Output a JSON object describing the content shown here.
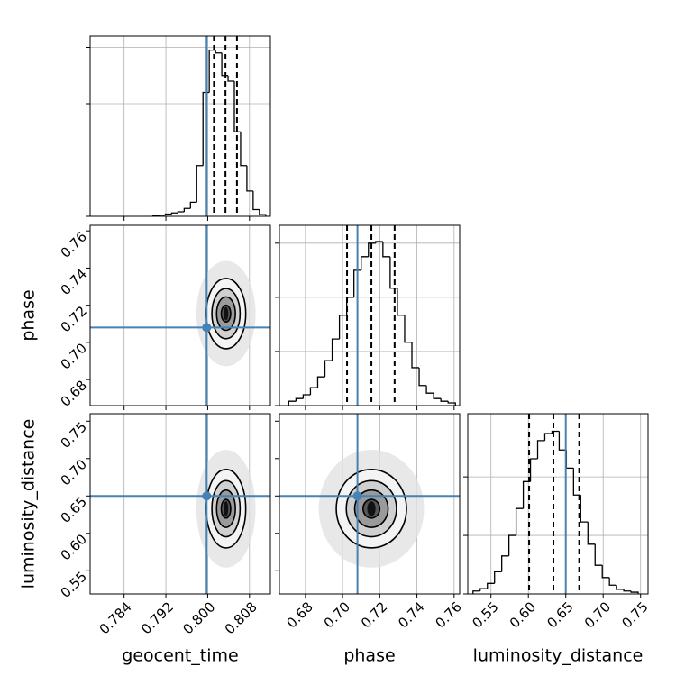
{
  "chart_data": {
    "type": "corner",
    "truth_color": "#4682b4",
    "grid": true,
    "contour_levels": [
      0.5,
      1,
      1.5,
      2.1
    ],
    "parameters": [
      {
        "name": "geocent_time",
        "lim": [
          0.7775,
          0.812
        ],
        "ticks": [
          0.784,
          0.792,
          {
            "value": 0.8,
            "label": "0.800"
          },
          0.808
        ],
        "truth": 0.7998,
        "mean": 0.8035,
        "std": 0.0018,
        "quantiles": [
          0.8012,
          0.8034,
          0.8056
        ],
        "hist": {
          "bins": [
            0.7895,
            0.7907,
            0.7919,
            0.7931,
            0.7943,
            0.7955,
            0.7967,
            0.7979,
            0.7991,
            0.8003,
            0.8015,
            0.8027,
            0.8039,
            0.8051,
            0.8063,
            0.8075,
            0.8087,
            0.8099,
            0.8111
          ],
          "counts": [
            0.01,
            0.02,
            0.04,
            0.06,
            0.08,
            0.14,
            0.25,
            0.9,
            2.2,
            2.95,
            2.9,
            2.5,
            2.4,
            1.5,
            0.9,
            0.45,
            0.12,
            0.03
          ],
          "ylim": [
            0,
            3.2
          ],
          "yticks": [
            0,
            1,
            2,
            3
          ]
        }
      },
      {
        "name": "phase",
        "lim": [
          0.666,
          0.763
        ],
        "ticks": [
          0.68,
          {
            "value": 0.7,
            "label": "0.70"
          },
          0.72,
          0.74,
          0.76
        ],
        "truth": 0.708,
        "mean": 0.7155,
        "std": 0.009,
        "quantiles": [
          0.7024,
          0.7155,
          0.728
        ],
        "hist": {
          "bins": [
            0.671,
            0.6749,
            0.6788,
            0.6827,
            0.6866,
            0.6905,
            0.6944,
            0.6983,
            0.7022,
            0.7061,
            0.71,
            0.7139,
            0.7178,
            0.7217,
            0.7256,
            0.7295,
            0.7334,
            0.7373,
            0.7412,
            0.7451,
            0.749,
            0.7529,
            0.7568,
            0.7607
          ],
          "counts": [
            0.08,
            0.13,
            0.2,
            0.33,
            0.53,
            0.83,
            1.23,
            1.67,
            2,
            2.5,
            2.75,
            3,
            3.03,
            2.75,
            2.17,
            1.67,
            1.17,
            0.7,
            0.37,
            0.23,
            0.13,
            0.08,
            0.05
          ],
          "ylim": [
            0,
            3.33
          ],
          "yticks": [
            0,
            1,
            2,
            3
          ]
        }
      },
      {
        "name": "luminosity_distance",
        "lim": [
          0.519,
          0.76
        ],
        "ticks": [
          0.55,
          {
            "value": 0.6,
            "label": "0.60"
          },
          0.65,
          {
            "value": 0.7,
            "label": "0.70"
          },
          0.75
        ],
        "truth": 0.65,
        "mean": 0.633,
        "std": 0.025,
        "quantiles": [
          0.601,
          0.6335,
          0.668
        ],
        "hist": {
          "bins": [
            0.526,
            0.5356,
            0.5452,
            0.5548,
            0.5644,
            0.574,
            0.5836,
            0.5932,
            0.6028,
            0.6124,
            0.622,
            0.6316,
            0.6412,
            0.6508,
            0.6604,
            0.67,
            0.6796,
            0.6892,
            0.6988,
            0.7084,
            0.718,
            0.7276,
            0.7372,
            0.7468
          ],
          "counts": [
            0.05,
            0.09,
            0.18,
            0.38,
            0.65,
            1,
            1.46,
            1.92,
            2.31,
            2.62,
            2.74,
            2.78,
            2.46,
            2.15,
            1.69,
            1.23,
            0.85,
            0.49,
            0.28,
            0.15,
            0.08,
            0.05,
            0.03
          ],
          "ylim": [
            0,
            3.08
          ],
          "yticks": [
            0,
            1,
            2
          ]
        }
      }
    ]
  }
}
